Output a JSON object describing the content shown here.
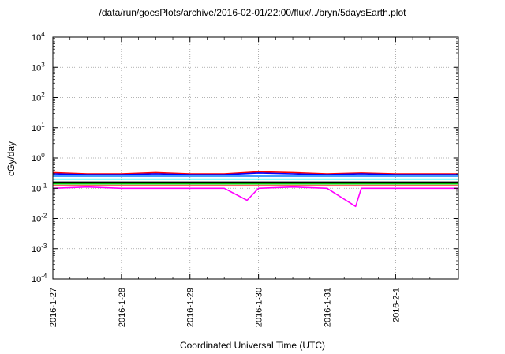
{
  "chart_data": {
    "type": "line",
    "title": "/data/run/goesPlots/archive/2016-02-01/22:00/flux/../bryn/5daysEarth.plot",
    "xlabel": "Coordinated Universal Time (UTC)",
    "ylabel": "cGy/day",
    "yscale": "log",
    "ylim_exponents": [
      -4,
      4
    ],
    "y_ticks": [
      {
        "base": "10",
        "exp": "4"
      },
      {
        "base": "10",
        "exp": "3"
      },
      {
        "base": "10",
        "exp": "2"
      },
      {
        "base": "10",
        "exp": "1"
      },
      {
        "base": "10",
        "exp": "0"
      },
      {
        "base": "10",
        "exp": "-1"
      },
      {
        "base": "10",
        "exp": "-2"
      },
      {
        "base": "10",
        "exp": "-3"
      },
      {
        "base": "10",
        "exp": "-4"
      }
    ],
    "x_ticks": [
      "2016-1-27",
      "2016-1-28",
      "2016-1-29",
      "2016-1-30",
      "2016-1-31",
      "2016-2-1"
    ],
    "x_range": [
      "2016-01-27 00:00",
      "2016-02-01 22:00"
    ],
    "grid": true,
    "series": [
      {
        "color": "#ff00ff",
        "points": [
          [
            "2016-01-27 00:00",
            0.1
          ],
          [
            "2016-01-27 12:00",
            0.11
          ],
          [
            "2016-01-28 00:00",
            0.1
          ],
          [
            "2016-01-28 12:00",
            0.1
          ],
          [
            "2016-01-29 00:00",
            0.1
          ],
          [
            "2016-01-29 12:00",
            0.1
          ],
          [
            "2016-01-29 20:00",
            0.04
          ],
          [
            "2016-01-30 00:00",
            0.1
          ],
          [
            "2016-01-30 12:00",
            0.11
          ],
          [
            "2016-01-31 00:00",
            0.1
          ],
          [
            "2016-01-31 10:00",
            0.025
          ],
          [
            "2016-01-31 12:00",
            0.1
          ],
          [
            "2016-02-01 00:00",
            0.1
          ],
          [
            "2016-02-01 12:00",
            0.1
          ],
          [
            "2016-02-01 22:00",
            0.1
          ]
        ]
      },
      {
        "color": "#ff0000",
        "points": [
          [
            "2016-01-27 00:00",
            0.12
          ],
          [
            "2016-01-28 00:00",
            0.12
          ],
          [
            "2016-01-29 00:00",
            0.12
          ],
          [
            "2016-01-30 00:00",
            0.12
          ],
          [
            "2016-01-31 00:00",
            0.12
          ],
          [
            "2016-02-01 00:00",
            0.12
          ],
          [
            "2016-02-01 22:00",
            0.12
          ]
        ]
      },
      {
        "color": "#00c000",
        "points": [
          [
            "2016-01-27 00:00",
            0.14
          ],
          [
            "2016-01-28 00:00",
            0.14
          ],
          [
            "2016-01-29 00:00",
            0.14
          ],
          [
            "2016-01-30 00:00",
            0.14
          ],
          [
            "2016-01-31 00:00",
            0.14
          ],
          [
            "2016-02-01 00:00",
            0.14
          ],
          [
            "2016-02-01 22:00",
            0.14
          ]
        ]
      },
      {
        "color": "#000000",
        "points": [
          [
            "2016-01-27 00:00",
            0.16
          ],
          [
            "2016-01-28 00:00",
            0.16
          ],
          [
            "2016-01-29 00:00",
            0.16
          ],
          [
            "2016-01-30 00:00",
            0.16
          ],
          [
            "2016-01-31 00:00",
            0.16
          ],
          [
            "2016-02-01 00:00",
            0.16
          ],
          [
            "2016-02-01 22:00",
            0.16
          ]
        ]
      },
      {
        "color": "#00ffff",
        "points": [
          [
            "2016-01-27 00:00",
            0.2
          ],
          [
            "2016-01-28 00:00",
            0.2
          ],
          [
            "2016-01-29 00:00",
            0.2
          ],
          [
            "2016-01-30 00:00",
            0.2
          ],
          [
            "2016-01-31 00:00",
            0.2
          ],
          [
            "2016-02-01 00:00",
            0.2
          ],
          [
            "2016-02-01 22:00",
            0.2
          ]
        ]
      },
      {
        "color": "#0080ff",
        "points": [
          [
            "2016-01-27 00:00",
            0.25
          ],
          [
            "2016-01-28 00:00",
            0.25
          ],
          [
            "2016-01-29 00:00",
            0.25
          ],
          [
            "2016-01-30 00:00",
            0.25
          ],
          [
            "2016-01-31 00:00",
            0.25
          ],
          [
            "2016-02-01 00:00",
            0.25
          ],
          [
            "2016-02-01 22:00",
            0.25
          ]
        ]
      },
      {
        "color": "#ff0000",
        "points": [
          [
            "2016-01-27 00:00",
            0.33
          ],
          [
            "2016-01-27 12:00",
            0.3
          ],
          [
            "2016-01-28 00:00",
            0.3
          ],
          [
            "2016-01-28 12:00",
            0.33
          ],
          [
            "2016-01-29 00:00",
            0.3
          ],
          [
            "2016-01-29 12:00",
            0.3
          ],
          [
            "2016-01-30 00:00",
            0.35
          ],
          [
            "2016-01-30 12:00",
            0.33
          ],
          [
            "2016-01-31 00:00",
            0.3
          ],
          [
            "2016-01-31 12:00",
            0.32
          ],
          [
            "2016-02-01 00:00",
            0.3
          ],
          [
            "2016-02-01 12:00",
            0.3
          ],
          [
            "2016-02-01 22:00",
            0.3
          ]
        ]
      },
      {
        "color": "#0000ff",
        "points": [
          [
            "2016-01-27 00:00",
            0.3
          ],
          [
            "2016-01-27 12:00",
            0.28
          ],
          [
            "2016-01-28 00:00",
            0.28
          ],
          [
            "2016-01-28 12:00",
            0.3
          ],
          [
            "2016-01-29 00:00",
            0.28
          ],
          [
            "2016-01-29 12:00",
            0.28
          ],
          [
            "2016-01-30 00:00",
            0.32
          ],
          [
            "2016-01-30 12:00",
            0.3
          ],
          [
            "2016-01-31 00:00",
            0.28
          ],
          [
            "2016-01-31 12:00",
            0.3
          ],
          [
            "2016-02-01 00:00",
            0.28
          ],
          [
            "2016-02-01 12:00",
            0.28
          ],
          [
            "2016-02-01 22:00",
            0.28
          ]
        ]
      }
    ]
  }
}
